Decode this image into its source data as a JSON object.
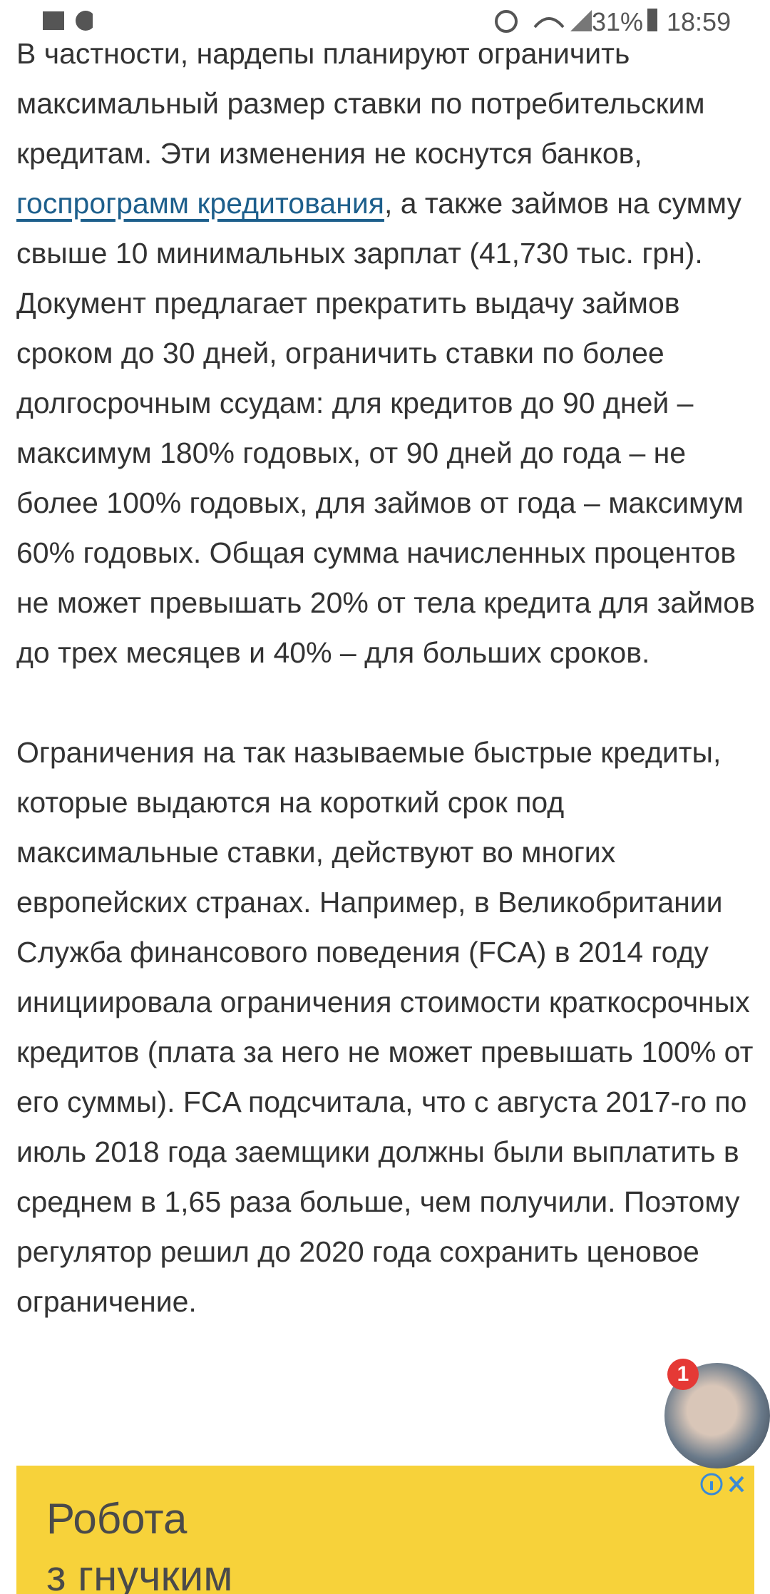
{
  "status_bar": {
    "battery": "31%",
    "time": "18:59"
  },
  "article": {
    "paragraph_1_start": "В частности, нардепы планируют ограничить максимальный размер ставки по потребительским кредитам. Эти изменения не коснутся банков, ",
    "paragraph_1_link": "госпрограмм кредитования",
    "paragraph_1_end": ", а также займов на сумму свыше 10 минимальных зарплат (41,730 тыс. грн). Документ предлагает прекратить выдачу займов сроком до 30 дней, ограничить ставки по более долгосрочным ссудам: для кредитов до 90 дней – максимум 180% годовых, от 90 дней до года – не более 100% годовых, для займов от года – максимум 60% годовых. Общая сумма начисленных процентов не может превышать 20% от тела кредита для займов до трех месяцев и 40% – для больших сроков.",
    "paragraph_2": "Ограничения на так называемые быстрые кредиты, которые выдаются на короткий срок под максимальные ставки, действуют во многих европейских странах. Например, в Великобритании Служба финансового поведения (FCA) в 2014 году инициировала ограничения стоимости краткосрочных кредитов (плата за него не может превышать 100% от его суммы). FCA подсчитала, что с августа 2017-го по июль 2018 года заемщики должны были выплатить в среднем в 1,65 раза больше, чем получили. Поэтому регулятор решил до 2020 года сохранить ценовое ограничение."
  },
  "chat_head": {
    "badge": "1"
  },
  "ad": {
    "line_1": "Робота",
    "line_2": "з гнучким"
  }
}
